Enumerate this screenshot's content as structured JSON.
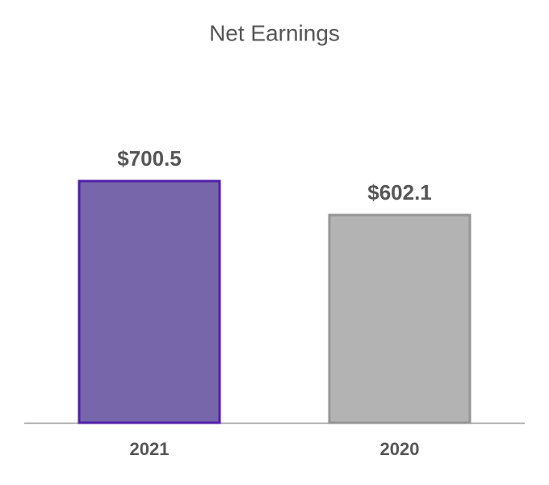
{
  "chart_data": {
    "type": "bar",
    "title": "Net Earnings",
    "categories": [
      "2021",
      "2020"
    ],
    "values": [
      700.5,
      602.1
    ],
    "value_labels": [
      "$700.5",
      "$602.1"
    ],
    "colors": [
      "#7766aa",
      "#b3b3b3"
    ],
    "edge_colors": [
      "#5020a8",
      "#959595"
    ]
  }
}
